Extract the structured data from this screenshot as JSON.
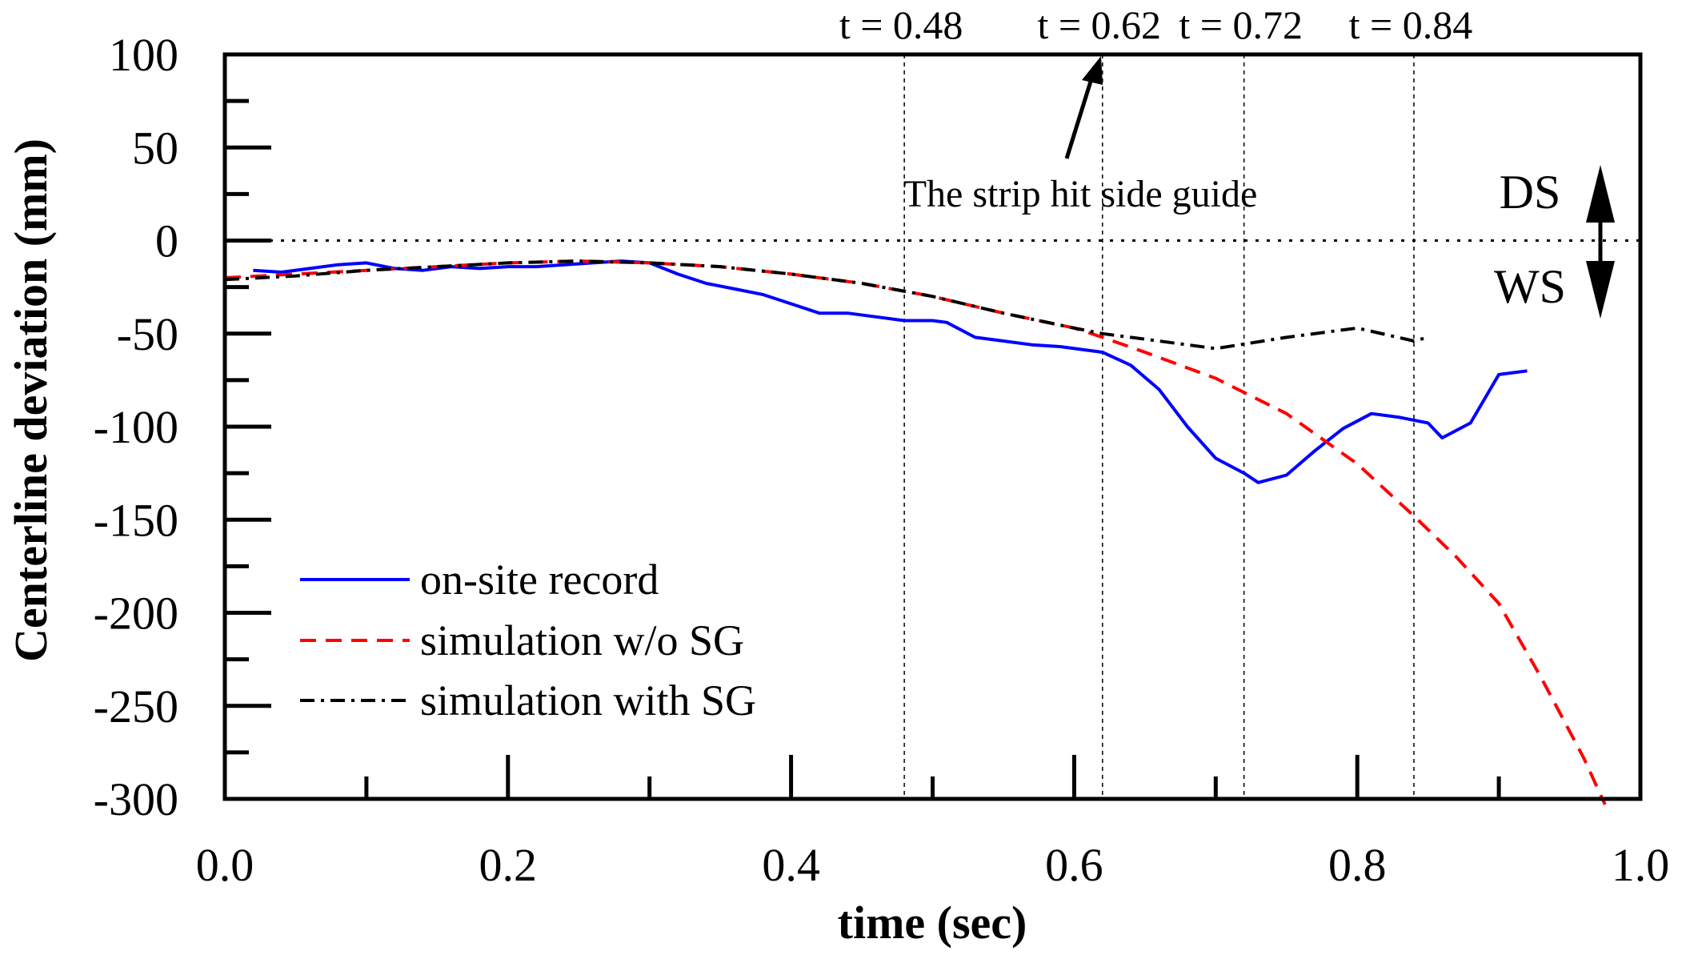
{
  "chart_data": {
    "type": "line",
    "xlabel": "time (sec)",
    "ylabel": "Centerline deviation (mm)",
    "xlim": [
      0.0,
      1.0
    ],
    "ylim": [
      -300,
      100
    ],
    "x_ticks": [
      0.0,
      0.2,
      0.4,
      0.6,
      0.8,
      1.0
    ],
    "x_tick_labels": [
      "0.0",
      "0.2",
      "0.4",
      "0.6",
      "0.8",
      "1.0"
    ],
    "y_ticks": [
      100,
      50,
      0,
      -50,
      -100,
      -150,
      -200,
      -250,
      -300
    ],
    "y_tick_labels": [
      "100",
      "50",
      "0",
      "-50",
      "-100",
      "-150",
      "-200",
      "-250",
      "-300"
    ],
    "grid": false,
    "legend_position": "lower-left",
    "zero_line": 0,
    "vertical_markers": [
      {
        "x": 0.48,
        "label": "t = 0.48"
      },
      {
        "x": 0.62,
        "label": "t = 0.62"
      },
      {
        "x": 0.72,
        "label": "t = 0.72"
      },
      {
        "x": 0.84,
        "label": "t = 0.84"
      }
    ],
    "annotation": {
      "text": "The strip hit side guide",
      "points_to_x": 0.62
    },
    "direction_labels": {
      "up": "DS",
      "down": "WS"
    },
    "series": [
      {
        "name": "on-site record",
        "color": "#0000ff",
        "dash": "solid",
        "x": [
          0.02,
          0.04,
          0.06,
          0.08,
          0.1,
          0.12,
          0.14,
          0.16,
          0.18,
          0.2,
          0.22,
          0.24,
          0.26,
          0.28,
          0.3,
          0.32,
          0.34,
          0.36,
          0.38,
          0.4,
          0.42,
          0.44,
          0.46,
          0.48,
          0.5,
          0.51,
          0.53,
          0.55,
          0.57,
          0.59,
          0.62,
          0.64,
          0.66,
          0.68,
          0.7,
          0.72,
          0.73,
          0.75,
          0.77,
          0.79,
          0.81,
          0.83,
          0.85,
          0.86,
          0.88,
          0.9,
          0.92
        ],
        "y": [
          -16,
          -17,
          -15,
          -13,
          -12,
          -15,
          -16,
          -14,
          -15,
          -14,
          -14,
          -13,
          -12,
          -11,
          -12,
          -18,
          -23,
          -26,
          -29,
          -34,
          -39,
          -39,
          -41,
          -43,
          -43,
          -44,
          -52,
          -54,
          -56,
          -57,
          -60,
          -67,
          -80,
          -100,
          -117,
          -125,
          -130,
          -126,
          -113,
          -101,
          -93,
          -95,
          -98,
          -106,
          -98,
          -72,
          -70
        ]
      },
      {
        "name": "simulation w/o SG",
        "color": "#ff0000",
        "dash": "dashed",
        "x": [
          0.0,
          0.05,
          0.1,
          0.15,
          0.2,
          0.25,
          0.3,
          0.35,
          0.4,
          0.45,
          0.5,
          0.55,
          0.6,
          0.62,
          0.65,
          0.7,
          0.75,
          0.8,
          0.84,
          0.87,
          0.9,
          0.93,
          0.96,
          0.975
        ],
        "y": [
          -20,
          -18,
          -16,
          -14,
          -12,
          -11,
          -12,
          -14,
          -18,
          -23,
          -30,
          -39,
          -47,
          -52,
          -60,
          -74,
          -93,
          -120,
          -148,
          -170,
          -195,
          -235,
          -278,
          -303
        ]
      },
      {
        "name": "simulation with SG",
        "color": "#000000",
        "dash": "dashdot",
        "x": [
          0.0,
          0.05,
          0.1,
          0.15,
          0.2,
          0.25,
          0.3,
          0.35,
          0.4,
          0.45,
          0.5,
          0.55,
          0.6,
          0.62,
          0.65,
          0.7,
          0.75,
          0.8,
          0.84,
          0.85
        ],
        "y": [
          -21,
          -19,
          -16,
          -14,
          -12,
          -11,
          -12,
          -14,
          -18,
          -23,
          -30,
          -39,
          -47,
          -50,
          -53,
          -58,
          -52,
          -47,
          -54,
          -52
        ]
      }
    ]
  }
}
